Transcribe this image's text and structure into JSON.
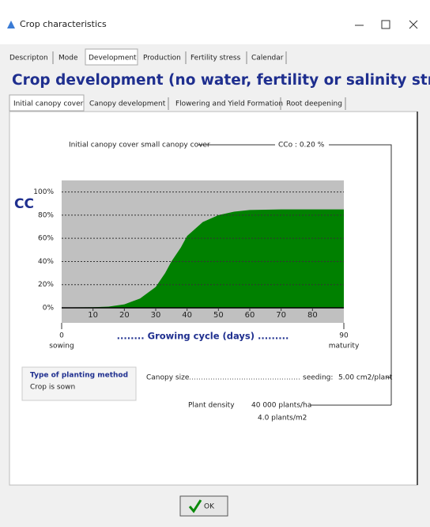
{
  "window": {
    "title": "Crop characteristics"
  },
  "tabs": [
    "Descripton",
    "Mode",
    "Development",
    "Production",
    "Fertility stress",
    "Calendar"
  ],
  "heading": "Crop development (no water, fertility or salinity stress)",
  "subtabs": [
    "Initial canopy cover",
    "Canopy development",
    "Flowering and Yield Formation",
    "Root deepening"
  ],
  "canopy": {
    "label": "Initial canopy cover small canopy cover",
    "cco": "CCo : 0.20 %"
  },
  "chart": {
    "type": "area",
    "y_label": "CC",
    "x_label": "........ Growing cycle (days) .........",
    "x": [
      0,
      10,
      15,
      20,
      25,
      30,
      33,
      35,
      38,
      40,
      45,
      50,
      55,
      60,
      70,
      80,
      90
    ],
    "values": [
      0.2,
      0.5,
      1,
      3,
      8,
      18,
      30,
      40,
      52,
      62,
      74,
      80,
      83,
      84.5,
      85,
      85,
      85
    ],
    "color": "#008000",
    "plot_color": "#c0c0c0",
    "xlim": [
      0,
      90
    ],
    "ylim": [
      -13,
      110
    ],
    "xticks": [
      10,
      20,
      30,
      40,
      50,
      60,
      70,
      80
    ],
    "yticks": [
      {
        "value": 0,
        "label": "0%"
      },
      {
        "value": 20,
        "label": "20%"
      },
      {
        "value": 40,
        "label": "40%"
      },
      {
        "value": 60,
        "label": "60%"
      },
      {
        "value": 80,
        "label": "80%"
      },
      {
        "value": 100,
        "label": "100%"
      }
    ],
    "axis_start": {
      "value": 0,
      "caption": "sowing"
    },
    "axis_end": {
      "value": 90,
      "caption": "maturity"
    }
  },
  "planting": {
    "title": "Type of planting method",
    "value": "Crop is sown"
  },
  "canopy_size": {
    "label": "Canopy size",
    "seeding_label": "seeding:",
    "seeding_value": "5.00 cm2/plant"
  },
  "density": {
    "label": "Plant density",
    "per_ha": "40 000 plants/ha",
    "per_m2": "4.0 plants/m2"
  },
  "button": "OK"
}
